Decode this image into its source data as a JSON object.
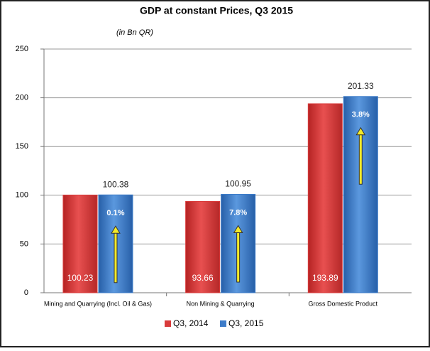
{
  "chart_data": {
    "type": "bar",
    "title": "GDP at constant Prices, Q3 2015",
    "subtitle": "(in Bn QR)",
    "categories": [
      "Mining and Quarrying (Incl. Oil & Gas)",
      "Non Mining & Quarrying",
      "Gross Domestic Product"
    ],
    "series": [
      {
        "name": "Q3, 2014",
        "color": "#d93b3b",
        "values": [
          100.23,
          93.66,
          193.89
        ]
      },
      {
        "name": "Q3, 2015",
        "color": "#3d7cc9",
        "values": [
          100.38,
          100.95,
          201.33
        ]
      }
    ],
    "growth_labels": [
      "0.1%",
      "7.8%",
      "3.8%"
    ],
    "ylim": [
      0,
      250
    ],
    "yticks": [
      0,
      50,
      100,
      150,
      200,
      250
    ],
    "grid": true,
    "legend": "bottom"
  }
}
